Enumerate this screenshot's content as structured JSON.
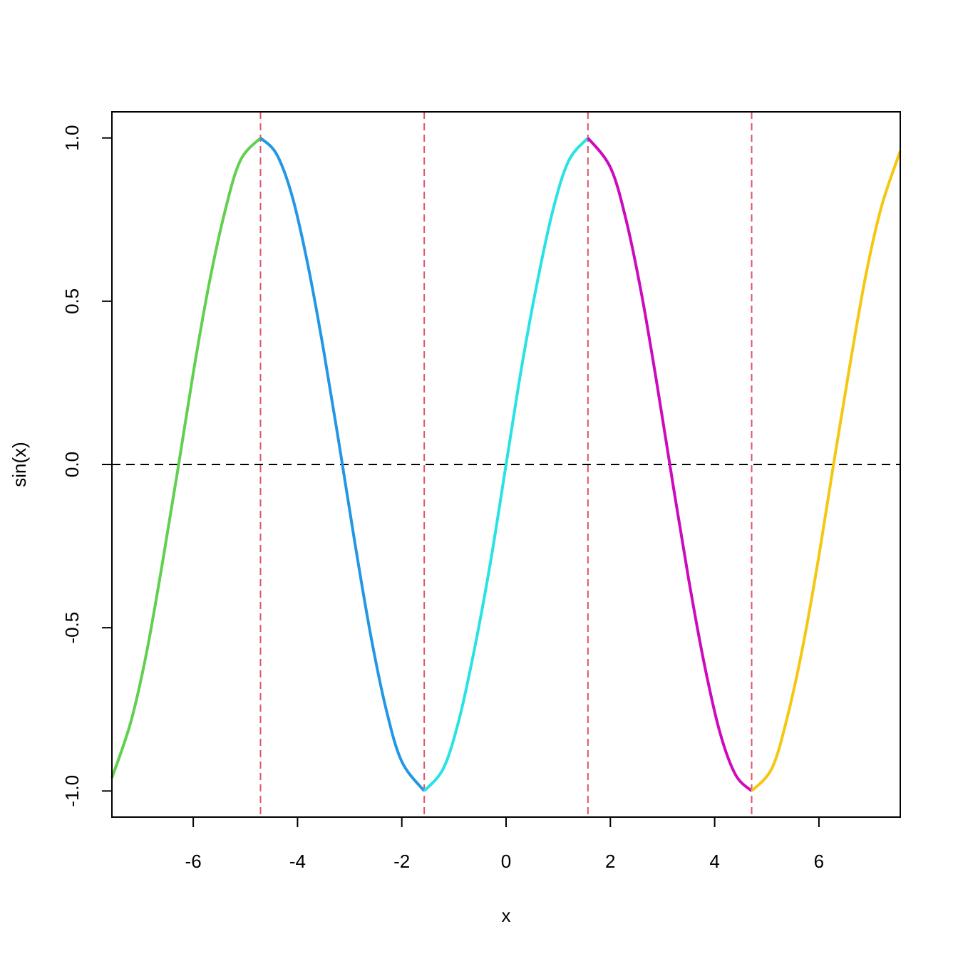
{
  "chart_data": {
    "type": "line",
    "x_label": "x",
    "y_label": "sin(x)",
    "xlim": [
      -7.56,
      7.56
    ],
    "ylim": [
      -1.08,
      1.08
    ],
    "xticks": [
      -6,
      -4,
      -2,
      0,
      2,
      4,
      6
    ],
    "yticks": [
      {
        "value": -1,
        "label": "-1.0"
      },
      {
        "value": -0.5,
        "label": "-0.5"
      },
      {
        "value": 0,
        "label": "0.0"
      },
      {
        "value": 0.5,
        "label": "0.5"
      },
      {
        "value": 1,
        "label": "1.0"
      }
    ],
    "series": [
      {
        "color": "#61D04F",
        "x": [
          -7.56,
          -7.2,
          -6.9,
          -6.6,
          -6.3,
          -6.0,
          -5.7,
          -5.4,
          -5.1,
          -4.71
        ],
        "values": [
          -0.96,
          -0.79,
          -0.58,
          -0.31,
          -0.02,
          0.28,
          0.55,
          0.77,
          0.93,
          1.0
        ]
      },
      {
        "color": "#2297E6",
        "x": [
          -4.71,
          -4.4,
          -4.1,
          -3.8,
          -3.5,
          -3.2,
          -2.9,
          -2.6,
          -2.3,
          -2.0,
          -1.57
        ],
        "values": [
          1.0,
          0.95,
          0.82,
          0.61,
          0.35,
          0.06,
          -0.24,
          -0.52,
          -0.75,
          -0.91,
          -1.0
        ]
      },
      {
        "color": "#28E2E5",
        "x": [
          -1.57,
          -1.2,
          -0.9,
          -0.6,
          -0.3,
          0,
          0.3,
          0.6,
          0.9,
          1.2,
          1.57
        ],
        "values": [
          -1.0,
          -0.93,
          -0.78,
          -0.56,
          -0.3,
          0,
          0.3,
          0.56,
          0.78,
          0.93,
          1.0
        ]
      },
      {
        "color": "#CD0BBC",
        "x": [
          1.57,
          2.0,
          2.3,
          2.6,
          2.9,
          3.2,
          3.5,
          3.8,
          4.1,
          4.4,
          4.71
        ],
        "values": [
          1.0,
          0.91,
          0.75,
          0.52,
          0.24,
          -0.06,
          -0.35,
          -0.61,
          -0.82,
          -0.95,
          -1.0
        ]
      },
      {
        "color": "#F5C710",
        "x": [
          4.71,
          5.1,
          5.4,
          5.7,
          6.0,
          6.3,
          6.6,
          6.9,
          7.2,
          7.56
        ],
        "values": [
          -1.0,
          -0.93,
          -0.77,
          -0.55,
          -0.28,
          0.02,
          0.31,
          0.58,
          0.79,
          0.96
        ]
      }
    ],
    "vlines": [
      -4.71,
      -1.57,
      1.57,
      4.71
    ],
    "vline_color": "#DF536B",
    "hline": 0,
    "hline_color": "#000000"
  }
}
